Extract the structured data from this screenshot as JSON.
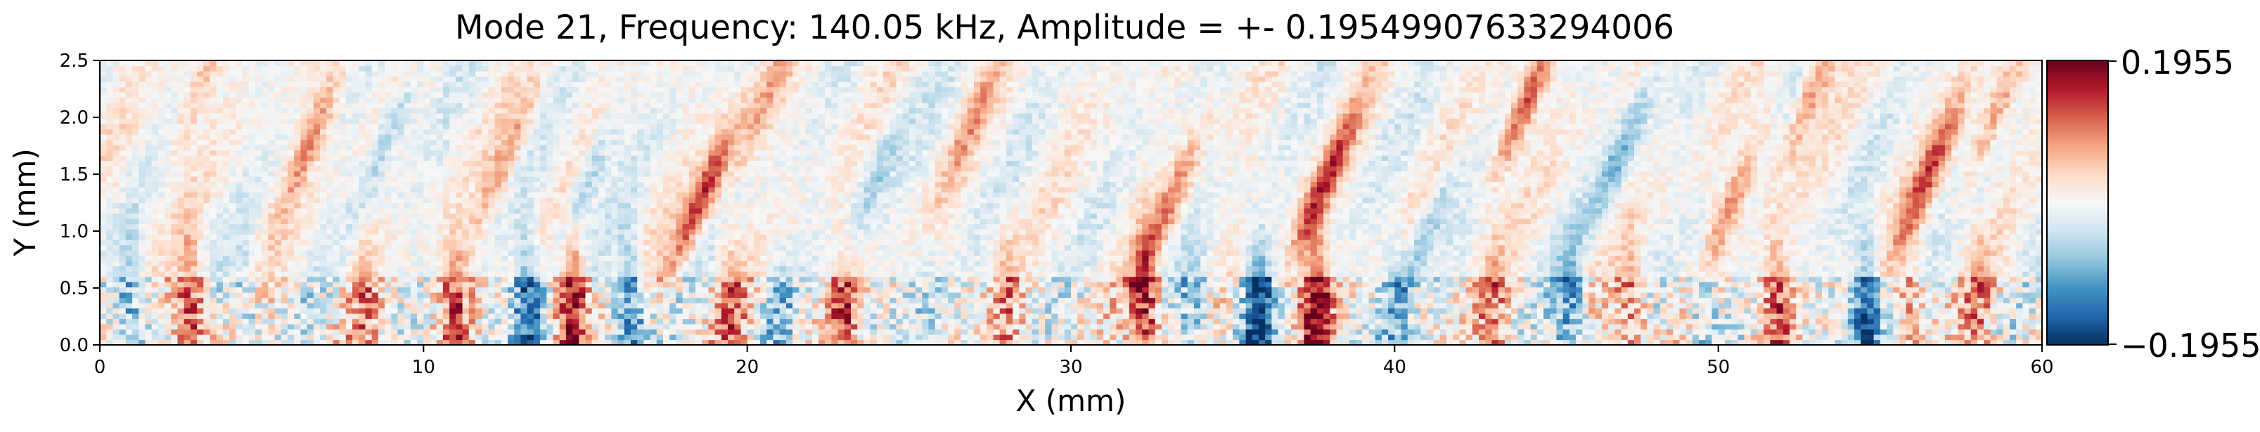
{
  "chart_data": {
    "type": "heatmap",
    "title": "Mode 21, Frequency: 140.05 kHz, Amplitude = +- 0.19549907633294006",
    "xlabel": "X (mm)",
    "ylabel": "Y (mm)",
    "xlim": [
      0,
      60
    ],
    "ylim": [
      0,
      2.5
    ],
    "x_ticks": [
      0,
      10,
      20,
      30,
      40,
      50,
      60
    ],
    "x_tick_labels": [
      "0",
      "10",
      "20",
      "30",
      "40",
      "50",
      "60"
    ],
    "y_ticks": [
      0.0,
      0.5,
      1.0,
      1.5,
      2.0,
      2.5
    ],
    "y_tick_labels": [
      "0.0",
      "0.5",
      "1.0",
      "1.5",
      "2.0",
      "2.5"
    ],
    "colormap": "RdBu_r",
    "vmin": -0.1955,
    "vmax": 0.1955,
    "colorbar_tick_labels": [
      "0.1955",
      "−0.1955"
    ],
    "colors": [
      "#053061",
      "#2166ac",
      "#4393c3",
      "#92c5de",
      "#d1e5f0",
      "#f7f7f7",
      "#fddbc7",
      "#f4a582",
      "#d6604d",
      "#b2182b",
      "#67001f"
    ],
    "pattern": {
      "bottom_band_ymax": 0.6,
      "vertical_features": [
        {
          "x": 1.0,
          "amp": -0.09
        },
        {
          "x": 2.8,
          "amp": 0.14
        },
        {
          "x": 4.5,
          "amp": -0.06
        },
        {
          "x": 8.2,
          "amp": 0.08
        },
        {
          "x": 11.0,
          "amp": 0.12
        },
        {
          "x": 13.2,
          "amp": -0.15
        },
        {
          "x": 14.6,
          "amp": 0.19
        },
        {
          "x": 16.4,
          "amp": -0.14
        },
        {
          "x": 19.5,
          "amp": 0.09
        },
        {
          "x": 21.0,
          "amp": -0.06
        },
        {
          "x": 23.0,
          "amp": 0.11
        },
        {
          "x": 25.5,
          "amp": -0.05
        },
        {
          "x": 28.0,
          "amp": 0.08
        },
        {
          "x": 32.3,
          "amp": 0.16
        },
        {
          "x": 33.8,
          "amp": -0.07
        },
        {
          "x": 35.8,
          "amp": -0.19
        },
        {
          "x": 37.6,
          "amp": 0.19
        },
        {
          "x": 40.0,
          "amp": -0.08
        },
        {
          "x": 43.0,
          "amp": 0.09
        },
        {
          "x": 45.4,
          "amp": -0.11
        },
        {
          "x": 47.3,
          "amp": 0.1
        },
        {
          "x": 49.5,
          "amp": -0.07
        },
        {
          "x": 51.8,
          "amp": 0.12
        },
        {
          "x": 54.6,
          "amp": -0.16
        },
        {
          "x": 56.0,
          "amp": 0.07
        },
        {
          "x": 58.0,
          "amp": 0.08
        }
      ],
      "diagonal_streaks": [
        {
          "x": 3.0,
          "y": 2.2,
          "amp": 0.06
        },
        {
          "x": 6.5,
          "y": 1.8,
          "amp": 0.09
        },
        {
          "x": 9.0,
          "y": 1.9,
          "amp": -0.07
        },
        {
          "x": 12.5,
          "y": 1.6,
          "amp": 0.08
        },
        {
          "x": 15.0,
          "y": 1.4,
          "amp": -0.08
        },
        {
          "x": 18.6,
          "y": 1.3,
          "amp": 0.15
        },
        {
          "x": 20.5,
          "y": 2.1,
          "amp": 0.07
        },
        {
          "x": 24.0,
          "y": 1.5,
          "amp": -0.06
        },
        {
          "x": 27.0,
          "y": 2.0,
          "amp": 0.06
        },
        {
          "x": 33.0,
          "y": 1.2,
          "amp": 0.09
        },
        {
          "x": 37.8,
          "y": 1.4,
          "amp": 0.14
        },
        {
          "x": 41.0,
          "y": 1.0,
          "amp": -0.08
        },
        {
          "x": 44.0,
          "y": 2.1,
          "amp": 0.14
        },
        {
          "x": 47.0,
          "y": 1.7,
          "amp": -0.09
        },
        {
          "x": 50.5,
          "y": 1.3,
          "amp": 0.09
        },
        {
          "x": 53.0,
          "y": 2.3,
          "amp": 0.1
        },
        {
          "x": 56.5,
          "y": 1.5,
          "amp": 0.12
        },
        {
          "x": 58.5,
          "y": 2.0,
          "amp": 0.08
        }
      ]
    }
  }
}
